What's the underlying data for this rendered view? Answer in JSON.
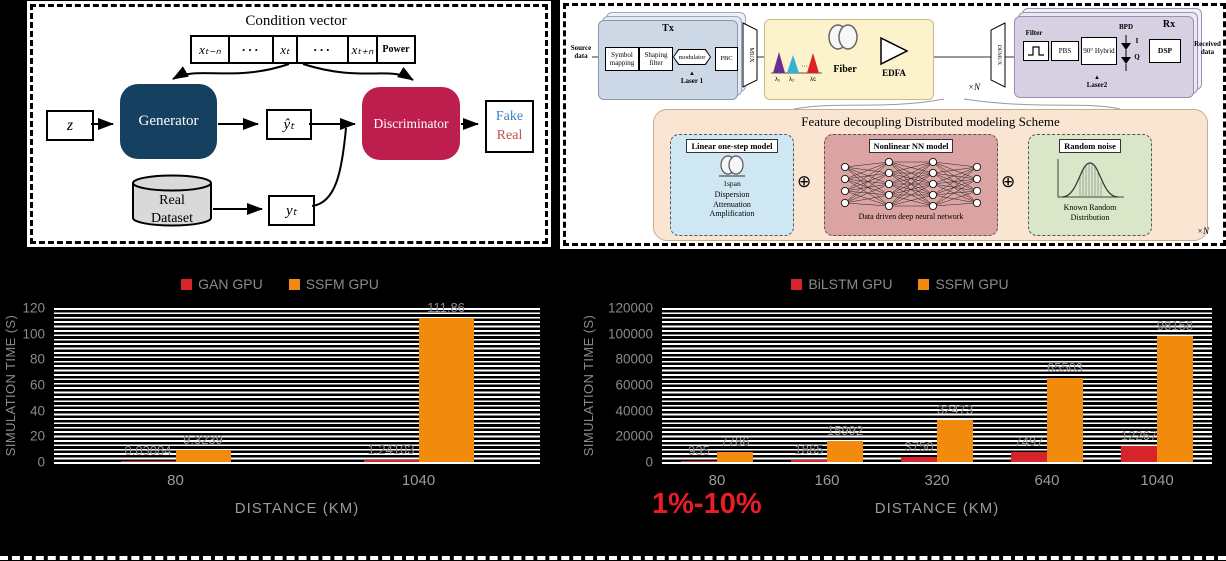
{
  "gan_panel": {
    "title": "Condition vector",
    "cells": [
      "xₜ₋ₙ",
      "···",
      "xₜ",
      "···",
      "xₜ₊ₙ",
      "Power"
    ],
    "z": "z",
    "generator": "Generator",
    "y_hat": "ŷₜ",
    "discriminator": "Discriminator",
    "fake": "Fake",
    "real": "Real",
    "dataset": "Real Dataset",
    "y": "yₜ",
    "colors": {
      "generator": "#16405f",
      "discriminator": "#bd1e4e",
      "fake": "#3b82c4",
      "real": "#c0504d"
    }
  },
  "system_panel": {
    "source": "Source data",
    "tx_title": "Tx",
    "symbol_mapping": "Symbol mapping",
    "shaping_filter": "Shaping filter",
    "modulator": "modulator",
    "laser1": "Laser 1",
    "pbc": "PBC",
    "mux": "MUX",
    "lambdas": [
      "λ₁",
      "λ₂",
      "λc"
    ],
    "lambda_dots": "···",
    "fiber": "Fiber",
    "edfa": "EDFA",
    "xn1": "×N",
    "demux": "DEMUX",
    "rx_title": "Rx",
    "filter": "Filter",
    "pbs": "PBS",
    "hybrid": "90° Hybrid",
    "bpd": "BPD",
    "i_label": "I",
    "q_label": "Q",
    "dsp": "DSP",
    "laser2": "Laser2",
    "received": "Received data",
    "scheme_title": "Feature decoupling Distributed modeling Scheme",
    "linear": {
      "header": "Linear one-step model",
      "span": "1span",
      "lines": [
        "Dispersion",
        "Attenuation",
        "Amplification"
      ]
    },
    "nn": {
      "header": "Nonlinear NN model",
      "caption": "Data driven deep neural network"
    },
    "noise": {
      "header": "Random noise",
      "caption": "Known Random Distribution"
    },
    "plus": "⊕",
    "xn2": "×N",
    "laser_icon": "▲"
  },
  "chart_data": [
    {
      "type": "bar",
      "categories": [
        "80",
        "1040"
      ],
      "series": [
        {
          "name": "GAN GPU",
          "color": "#d6242b",
          "values": [
            0.03084,
            1.24103
          ],
          "labels": [
            "0.03084",
            "1.24103"
          ]
        },
        {
          "name": "SSFM GPU",
          "color": "#f28b0d",
          "values": [
            9.3239,
            111.86
          ],
          "labels": [
            "9.3239",
            "111.86"
          ]
        }
      ],
      "xlabel": "DISTANCE (KM)",
      "ylabel": "SIMULATION TIME (S)",
      "ylim": [
        0,
        120
      ],
      "ytick_step": 20,
      "legend_position": "top",
      "gridlines": "dense-horizontal-white-on-black"
    },
    {
      "type": "bar",
      "categories": [
        "80",
        "160",
        "320",
        "640",
        "1040"
      ],
      "series": [
        {
          "name": "BiLSTM GPU",
          "color": "#d6242b",
          "values": [
            935,
            1865,
            3750,
            7497,
            12267
          ],
          "labels": [
            "935",
            "1865",
            "3750",
            "7497",
            "12267"
          ]
        },
        {
          "name": "SSFM GPU",
          "color": "#f28b0d",
          "values": [
            7786,
            15992,
            32473,
            65503,
            98158
          ],
          "labels": [
            "7786",
            "15992",
            "32473",
            "65503",
            "98158"
          ]
        }
      ],
      "xlabel": "DISTANCE (KM)",
      "ylabel": "SIMULATION TIME (S)",
      "ylim": [
        0,
        120000
      ],
      "ytick_step": 20000,
      "legend_position": "top",
      "annotation": "1%-10%",
      "gridlines": "dense-horizontal-white-on-black"
    }
  ]
}
